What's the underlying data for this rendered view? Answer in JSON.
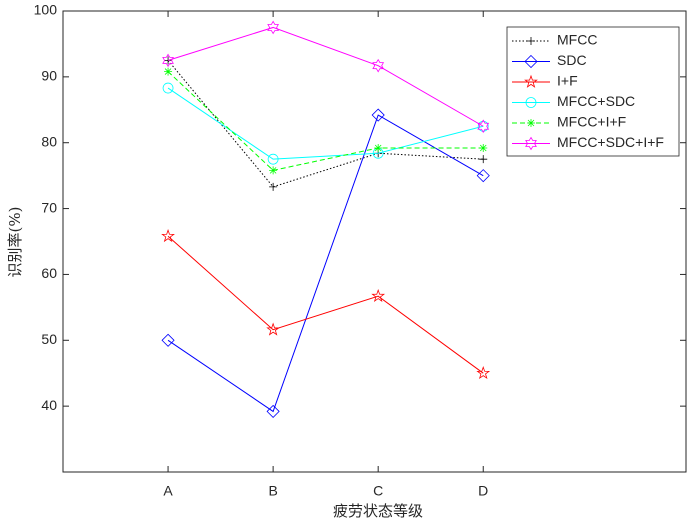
{
  "chart_data": {
    "type": "line",
    "x_label": "疲劳状态等级",
    "y_label": "识别率(%)",
    "categories": [
      "A",
      "B",
      "C",
      "D"
    ],
    "ylim": [
      30,
      100
    ],
    "yticks": [
      40,
      50,
      60,
      70,
      80,
      90,
      100
    ],
    "legend": "top-right",
    "series": [
      {
        "name": "MFCC",
        "color": "#000000",
        "dash": "dotted",
        "marker": "plus",
        "values": [
          92.5,
          73.3,
          78.4,
          77.5
        ]
      },
      {
        "name": "SDC",
        "color": "#0000ff",
        "dash": "solid",
        "marker": "diamond",
        "values": [
          50,
          39.2,
          84.2,
          75
        ]
      },
      {
        "name": "I+F",
        "color": "#ff0000",
        "dash": "solid",
        "marker": "pentagram",
        "values": [
          65.8,
          51.6,
          56.7,
          45
        ]
      },
      {
        "name": "MFCC+SDC",
        "color": "#00ffff",
        "dash": "solid",
        "marker": "circle",
        "values": [
          88.3,
          77.5,
          78.4,
          82.5
        ]
      },
      {
        "name": "MFCC+I+F",
        "color": "#00ff00",
        "dash": "dashed",
        "marker": "asterisk",
        "values": [
          90.8,
          75.8,
          79.2,
          79.2
        ]
      },
      {
        "name": "MFCC+SDC+I+F",
        "color": "#ff00ff",
        "dash": "solid",
        "marker": "hexagram",
        "values": [
          92.5,
          97.5,
          91.7,
          82.5
        ]
      }
    ]
  }
}
